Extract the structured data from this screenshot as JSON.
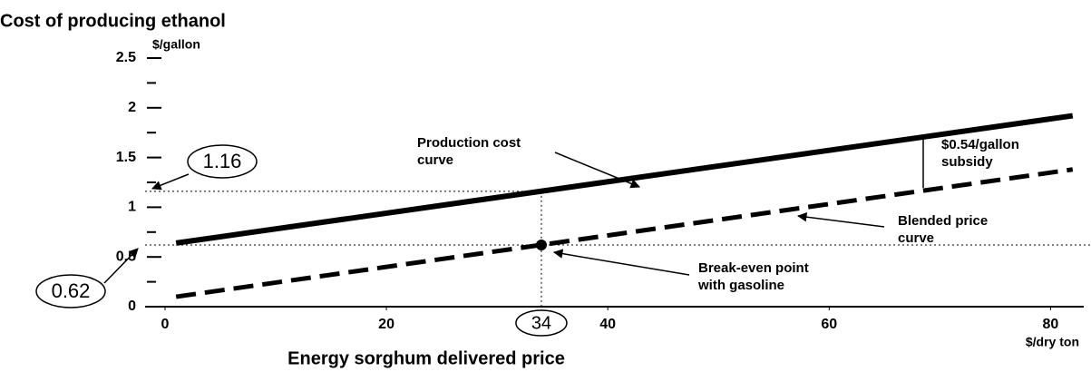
{
  "chart_data": {
    "type": "line",
    "title": "Cost of producing ethanol",
    "y_unit": "$/gallon",
    "x_label": "Energy sorghum delivered price",
    "x_unit": "$/dry ton",
    "xlim": [
      -1.8,
      83
    ],
    "ylim": [
      0,
      2.5
    ],
    "xticks": [
      0,
      20,
      40,
      60,
      80
    ],
    "yticks": [
      0,
      0.5,
      1,
      1.5,
      2,
      2.5
    ],
    "y_minor_ticks": [
      0.25,
      0.75,
      1.25,
      1.75,
      2.25
    ],
    "series": [
      {
        "name": "Production cost curve",
        "color": "#000000",
        "dash": false,
        "x": [
          1,
          82
        ],
        "values": [
          0.64,
          1.92
        ]
      },
      {
        "name": "Blended price curve",
        "color": "#000000",
        "dash": true,
        "x": [
          1,
          82
        ],
        "values": [
          0.1,
          1.38
        ]
      }
    ],
    "annotations": [
      {
        "lines": [
          "Production cost",
          "curve"
        ]
      },
      {
        "lines": [
          "$0.54/gallon",
          "subsidy"
        ]
      },
      {
        "lines": [
          "Blended price",
          "curve"
        ]
      },
      {
        "lines": [
          "Break-even point",
          "with gasoline"
        ]
      }
    ],
    "breakeven": {
      "x": 34,
      "y": 0.62,
      "cost": 1.16
    }
  }
}
